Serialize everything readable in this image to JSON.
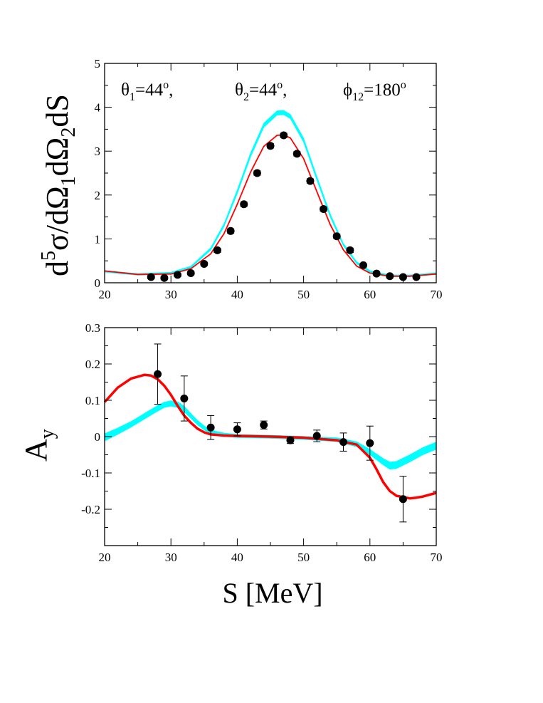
{
  "chart_data": [
    {
      "type": "line",
      "title": "",
      "xlabel": "",
      "ylabel": "d5σ/dΩ1dΩ2dS",
      "ylabel_parts": {
        "d": "d",
        "sup": "5",
        "main": "σ/dΩ",
        "sub1": "1",
        "mid": "dΩ",
        "sub2": "2",
        "tail": "dS"
      },
      "xlim": [
        20,
        70
      ],
      "ylim": [
        0,
        5
      ],
      "xticks": [
        "20",
        "30",
        "40",
        "50",
        "60",
        "70"
      ],
      "yticks": [
        "0",
        "1",
        "2",
        "3",
        "4",
        "5"
      ],
      "grid": false,
      "annotations": [
        {
          "sym": "θ",
          "sub": "1",
          "eq": "=44",
          "sup": "o",
          "tail": ","
        },
        {
          "sym": "θ",
          "sub": "2",
          "eq": "=44",
          "sup": "o",
          "tail": ","
        },
        {
          "sym": "ϕ",
          "sub": "12",
          "eq": "=180",
          "sup": "o",
          "tail": ""
        }
      ],
      "colors": {
        "band": "#00ffff",
        "line": "#ff0000",
        "points": "#000000"
      },
      "band": {
        "x": [
          20,
          25,
          30,
          33,
          36,
          38,
          40,
          42,
          44,
          46,
          47,
          48,
          50,
          52,
          54,
          56,
          58,
          60,
          63,
          66,
          70
        ],
        "lower": [
          0.24,
          0.17,
          0.2,
          0.34,
          0.74,
          1.28,
          2.03,
          2.86,
          3.54,
          3.82,
          3.83,
          3.74,
          3.2,
          2.34,
          1.5,
          0.84,
          0.43,
          0.24,
          0.14,
          0.14,
          0.19
        ],
        "upper": [
          0.28,
          0.21,
          0.24,
          0.38,
          0.8,
          1.35,
          2.12,
          2.96,
          3.64,
          3.92,
          3.93,
          3.84,
          3.3,
          2.43,
          1.58,
          0.9,
          0.48,
          0.28,
          0.18,
          0.18,
          0.23
        ]
      },
      "line": {
        "x": [
          20,
          25,
          30,
          33,
          36,
          38,
          40,
          42,
          44,
          46,
          47,
          48,
          50,
          52,
          54,
          56,
          58,
          60,
          63,
          66,
          70
        ],
        "y": [
          0.27,
          0.19,
          0.2,
          0.32,
          0.66,
          1.12,
          1.79,
          2.52,
          3.11,
          3.36,
          3.37,
          3.3,
          2.83,
          2.08,
          1.33,
          0.75,
          0.38,
          0.22,
          0.15,
          0.15,
          0.2
        ]
      },
      "points": {
        "x": [
          27,
          29,
          31,
          33,
          35,
          37,
          39,
          41,
          43,
          45,
          47,
          49,
          51,
          53,
          55,
          57,
          59,
          61,
          63,
          65,
          67
        ],
        "y": [
          0.13,
          0.11,
          0.18,
          0.22,
          0.43,
          0.74,
          1.18,
          1.79,
          2.5,
          3.12,
          3.36,
          2.94,
          2.32,
          1.68,
          1.06,
          0.74,
          0.4,
          0.21,
          0.15,
          0.13,
          0.13
        ],
        "err": [
          0.04,
          0.04,
          0.04,
          0.04,
          0.04,
          0.05,
          0.05,
          0.05,
          0.05,
          0.05,
          0.05,
          0.05,
          0.05,
          0.05,
          0.05,
          0.05,
          0.04,
          0.04,
          0.04,
          0.04,
          0.04
        ]
      }
    },
    {
      "type": "line",
      "title": "",
      "xlabel": "S [MeV]",
      "ylabel": "Ay",
      "ylabel_parts": {
        "main": "A",
        "sub": "y"
      },
      "xlim": [
        20,
        70
      ],
      "ylim": [
        -0.3,
        0.3
      ],
      "xticks": [
        "20",
        "30",
        "40",
        "50",
        "60",
        "70"
      ],
      "yticks": [
        "-0.2",
        "-0.1",
        "0",
        "0.1",
        "0.2",
        "0.3"
      ],
      "ytick_values": [
        -0.2,
        -0.1,
        0,
        0.1,
        0.2,
        0.3
      ],
      "grid": false,
      "colors": {
        "band": "#00ffff",
        "line": "#ff0000",
        "points": "#000000"
      },
      "band": {
        "x": [
          20,
          22,
          24,
          26,
          28,
          29,
          30,
          31,
          32,
          33,
          34,
          35,
          36,
          38,
          40,
          45,
          50,
          55,
          58,
          60,
          62,
          63,
          64,
          66,
          68,
          70
        ],
        "lower": [
          -0.012,
          0.006,
          0.026,
          0.048,
          0.07,
          0.08,
          0.084,
          0.08,
          0.068,
          0.05,
          0.032,
          0.018,
          0.008,
          0.0,
          -0.003,
          -0.005,
          -0.008,
          -0.014,
          -0.028,
          -0.05,
          -0.078,
          -0.09,
          -0.088,
          -0.07,
          -0.05,
          -0.035
        ],
        "upper": [
          0.008,
          0.024,
          0.042,
          0.064,
          0.086,
          0.095,
          0.099,
          0.096,
          0.084,
          0.064,
          0.045,
          0.03,
          0.018,
          0.01,
          0.006,
          0.004,
          0.001,
          -0.003,
          -0.014,
          -0.035,
          -0.06,
          -0.07,
          -0.068,
          -0.05,
          -0.03,
          -0.015
        ]
      },
      "line": {
        "x": [
          20,
          22,
          24,
          26,
          27,
          28,
          29,
          30,
          31,
          32,
          33,
          34,
          35,
          36,
          38,
          40,
          45,
          50,
          55,
          58,
          60,
          61,
          62,
          63,
          64,
          66,
          67,
          68,
          70
        ],
        "y": [
          0.095,
          0.135,
          0.16,
          0.17,
          0.168,
          0.158,
          0.14,
          0.115,
          0.085,
          0.058,
          0.038,
          0.022,
          0.012,
          0.006,
          0.003,
          0.002,
          0.0,
          -0.003,
          -0.01,
          -0.022,
          -0.058,
          -0.09,
          -0.125,
          -0.15,
          -0.163,
          -0.17,
          -0.168,
          -0.165,
          -0.155
        ]
      },
      "points": {
        "x": [
          28,
          32,
          36,
          40,
          44,
          48,
          52,
          56,
          60,
          65
        ],
        "y": [
          0.172,
          0.105,
          0.025,
          0.02,
          0.032,
          -0.01,
          0.002,
          -0.015,
          -0.018,
          -0.172
        ],
        "err": [
          0.083,
          0.062,
          0.033,
          0.018,
          0.011,
          0.009,
          0.016,
          0.025,
          0.047,
          0.063
        ]
      }
    }
  ]
}
